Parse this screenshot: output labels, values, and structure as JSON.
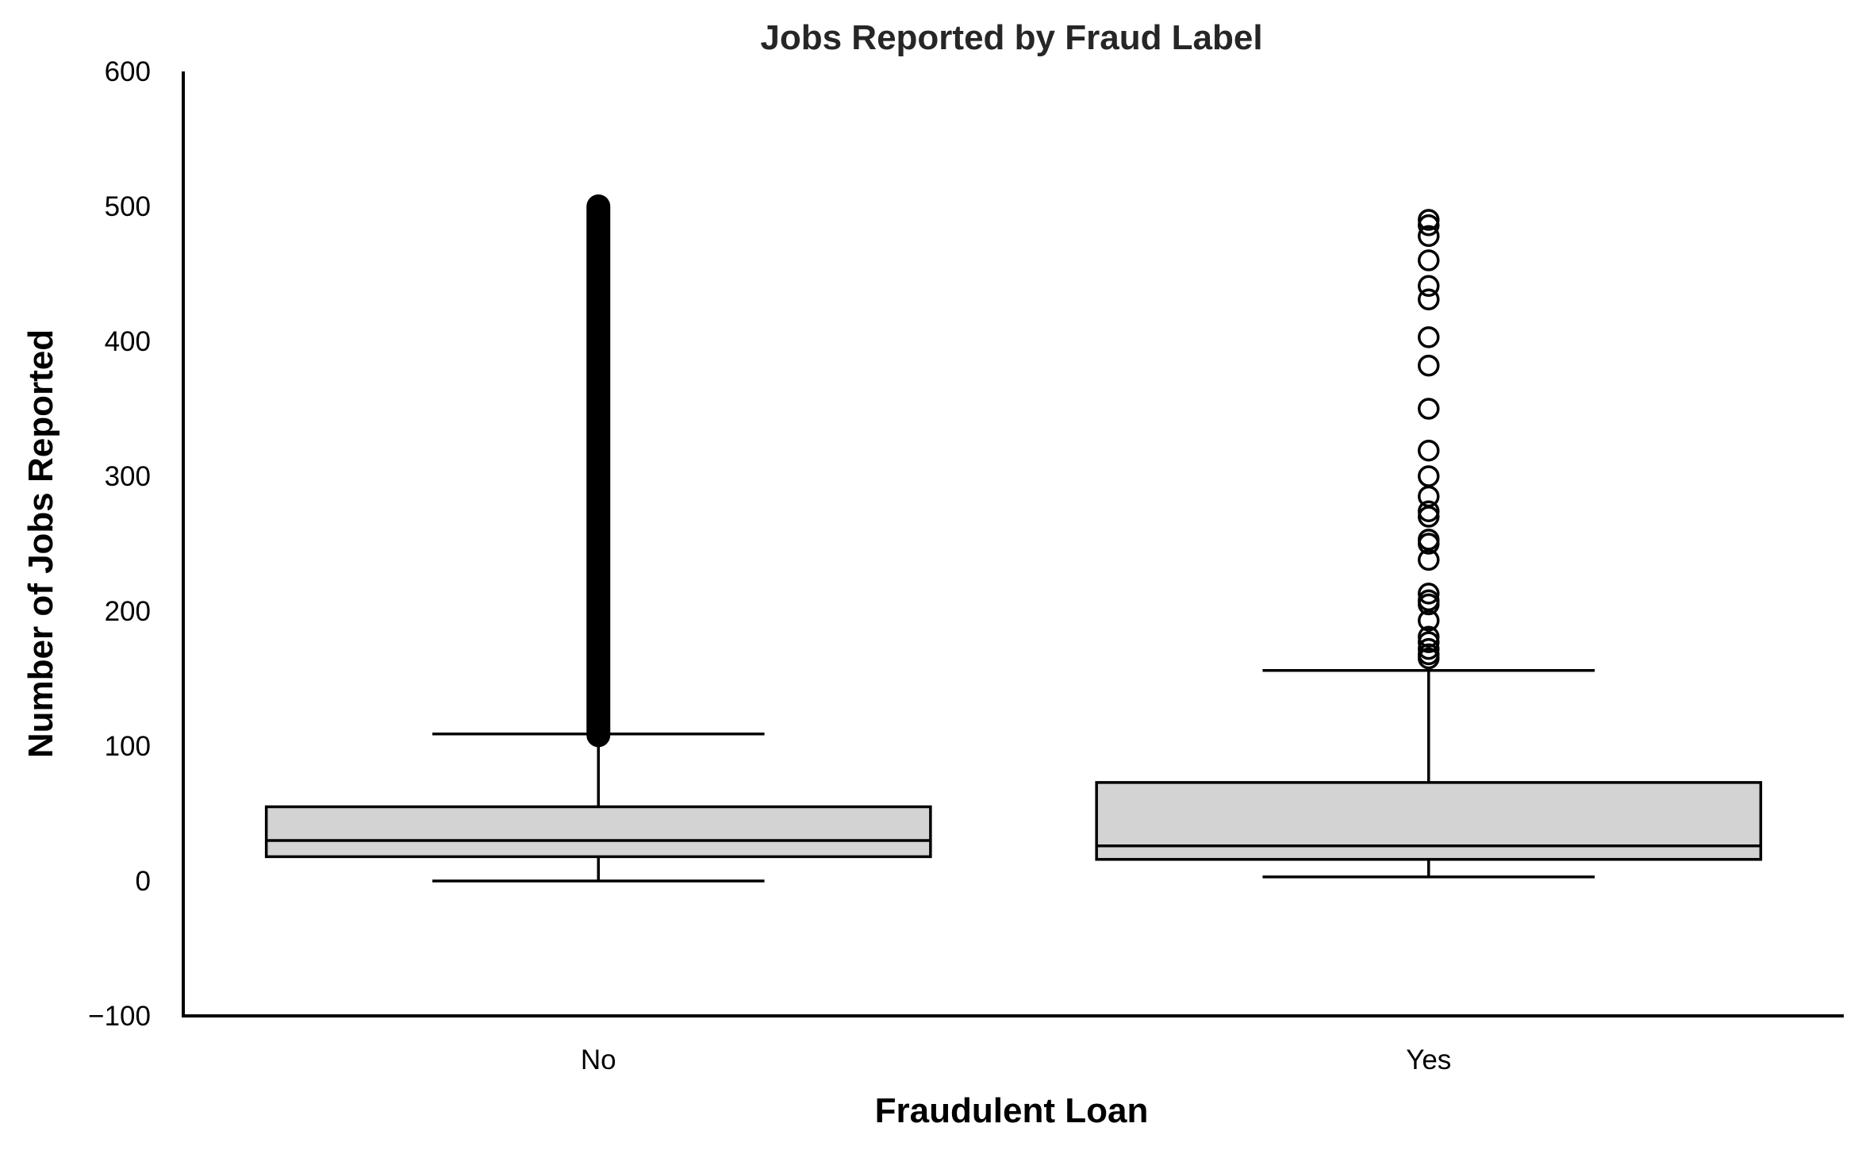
{
  "chart_data": {
    "type": "box",
    "title": "Jobs Reported by Fraud Label",
    "xlabel": "Fraudulent Loan",
    "ylabel": "Number of Jobs Reported",
    "ylim": [
      -100,
      600
    ],
    "yticks": [
      -100,
      0,
      100,
      200,
      300,
      400,
      500,
      600
    ],
    "ytick_labels": [
      "−100",
      "0",
      "100",
      "200",
      "300",
      "400",
      "500",
      "600"
    ],
    "categories": [
      "No",
      "Yes"
    ],
    "grid": false,
    "box_color": "#d3d3d3",
    "line_color": "#000000",
    "boxes": [
      {
        "category": "No",
        "whisker_low": 0,
        "q1": 18,
        "median": 30,
        "q3": 55,
        "whisker_high": 109,
        "outlier_range": [
          108,
          500
        ]
      },
      {
        "category": "Yes",
        "whisker_low": 3,
        "q1": 16,
        "median": 26,
        "q3": 73,
        "whisker_high": 156,
        "outliers": [
          165,
          168,
          172,
          177,
          181,
          193,
          205,
          208,
          213,
          238,
          250,
          253,
          270,
          274,
          285,
          300,
          319,
          350,
          382,
          403,
          431,
          441,
          460,
          478,
          486,
          490
        ]
      }
    ]
  }
}
